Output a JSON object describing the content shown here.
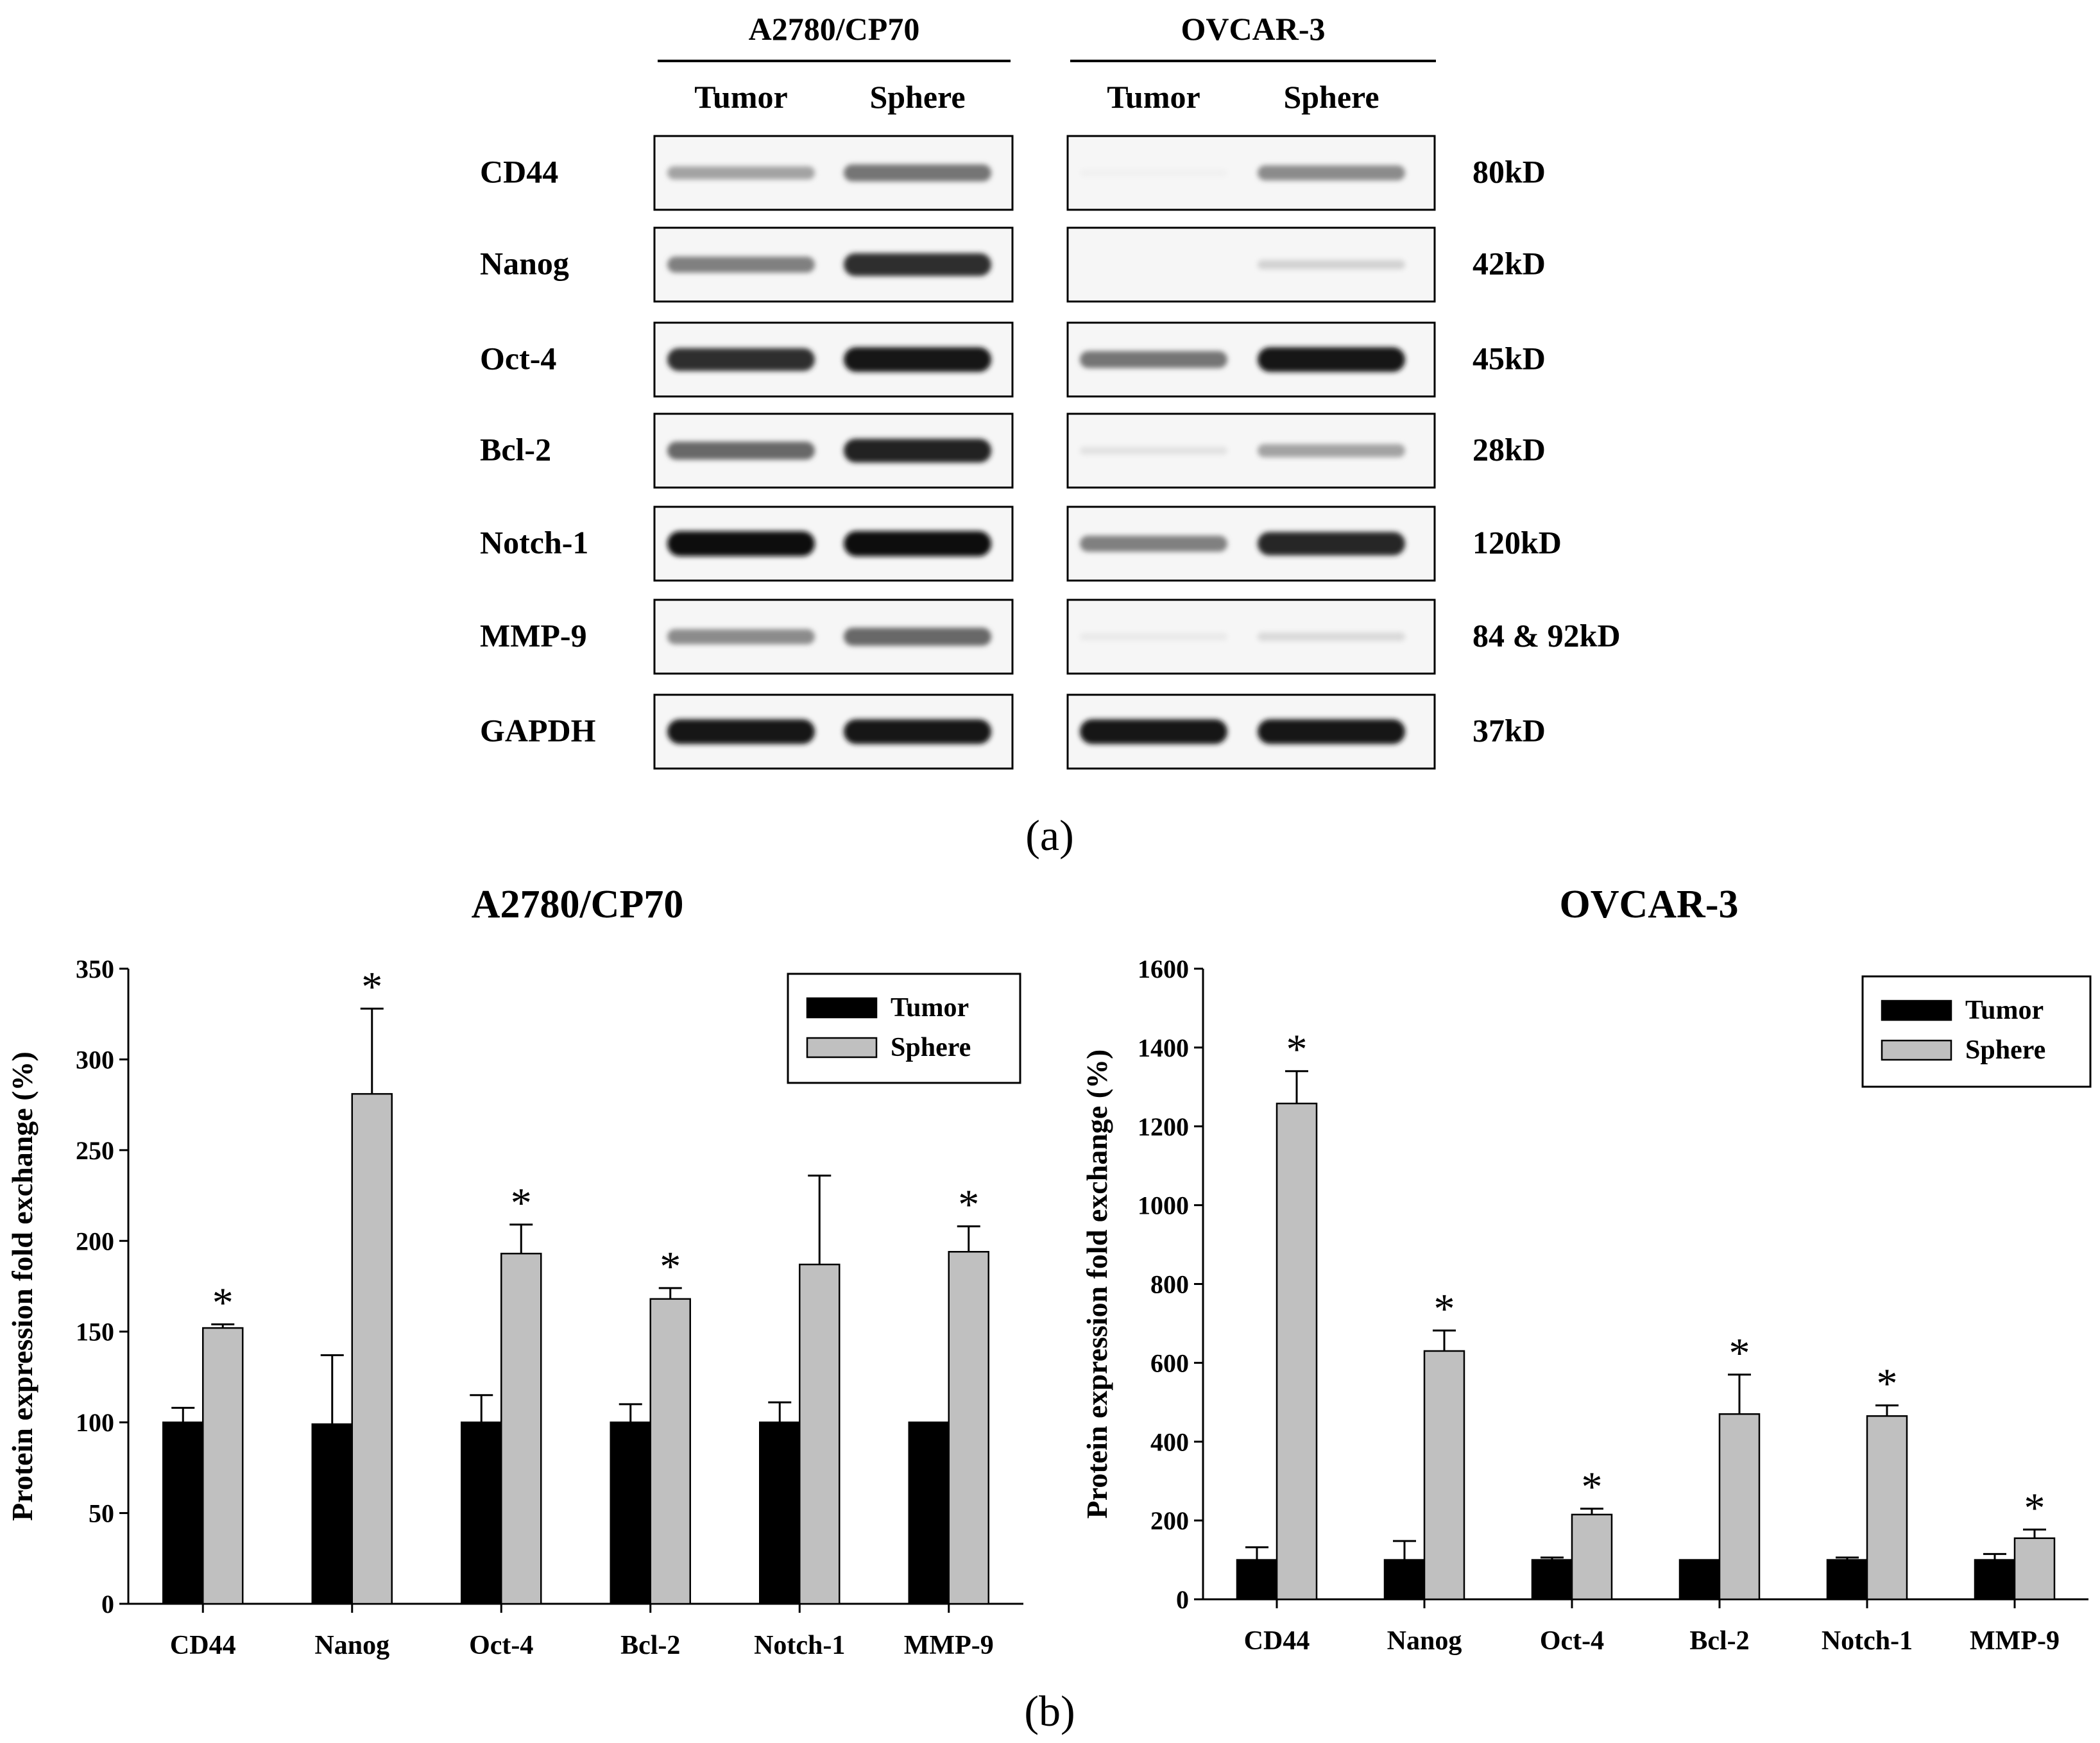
{
  "panel_a": {
    "label": "(a)",
    "cell_lines": [
      {
        "name": "A2780/CP70",
        "columns": [
          "Tumor",
          "Sphere"
        ],
        "intensity": [
          [
            0.35,
            0.55
          ],
          [
            0.5,
            0.85
          ],
          [
            0.85,
            0.95
          ],
          [
            0.6,
            0.9
          ],
          [
            0.97,
            0.98
          ],
          [
            0.45,
            0.6
          ],
          [
            0.95,
            0.95
          ]
        ]
      },
      {
        "name": "OVCAR-3",
        "columns": [
          "Tumor",
          "Sphere"
        ],
        "intensity": [
          [
            0.02,
            0.45
          ],
          [
            0.0,
            0.15
          ],
          [
            0.55,
            0.95
          ],
          [
            0.08,
            0.35
          ],
          [
            0.5,
            0.88
          ],
          [
            0.05,
            0.12
          ],
          [
            0.95,
            0.95
          ]
        ]
      }
    ],
    "proteins": [
      "CD44",
      "Nanog",
      "Oct-4",
      "Bcl-2",
      "Notch-1",
      "MMP-9",
      "GAPDH"
    ],
    "weights": [
      "80kD",
      "42kD",
      "45kD",
      "28kD",
      "120kD",
      "84 & 92kD",
      "37kD"
    ]
  },
  "panel_b": {
    "label": "(b)"
  },
  "chart_data": [
    {
      "type": "bar",
      "title": "A2780/CP70",
      "ylabel": "Protein expression fold exchange (%)",
      "xlabel": "",
      "categories": [
        "CD44",
        "Nanog",
        "Oct-4",
        "Bcl-2",
        "Notch-1",
        "MMP-9"
      ],
      "ylim": [
        0,
        350
      ],
      "yticks": [
        0,
        50,
        100,
        150,
        200,
        250,
        300,
        350
      ],
      "legend_position": "top-right",
      "series": [
        {
          "name": "Tumor",
          "color": "#000000",
          "values": [
            100,
            99,
            100,
            100,
            100,
            100
          ],
          "errors": [
            8,
            38,
            15,
            10,
            11,
            0
          ]
        },
        {
          "name": "Sphere",
          "color": "#c0c0c0",
          "values": [
            152,
            281,
            193,
            168,
            187,
            194
          ],
          "errors": [
            2,
            47,
            16,
            6,
            49,
            14
          ]
        }
      ],
      "significance": [
        "*",
        "*",
        "*",
        "*",
        "",
        "*"
      ]
    },
    {
      "type": "bar",
      "title": "OVCAR-3",
      "ylabel": "Protein expression fold exchange (%)",
      "xlabel": "",
      "categories": [
        "CD44",
        "Nanog",
        "Oct-4",
        "Bcl-2",
        "Notch-1",
        "MMP-9"
      ],
      "ylim": [
        0,
        1600
      ],
      "yticks": [
        0,
        200,
        400,
        600,
        800,
        1000,
        1200,
        1400,
        1600
      ],
      "legend_position": "top-right",
      "series": [
        {
          "name": "Tumor",
          "color": "#000000",
          "values": [
            100,
            100,
            100,
            100,
            100,
            100
          ],
          "errors": [
            32,
            48,
            6,
            0,
            6,
            15
          ]
        },
        {
          "name": "Sphere",
          "color": "#c0c0c0",
          "values": [
            1258,
            630,
            215,
            470,
            465,
            155
          ],
          "errors": [
            82,
            52,
            15,
            100,
            27,
            22
          ]
        }
      ],
      "significance": [
        "*",
        "*",
        "*",
        "*",
        "*",
        "*"
      ]
    }
  ]
}
